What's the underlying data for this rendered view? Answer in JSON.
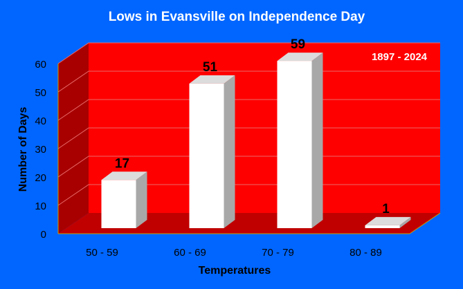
{
  "chart_data": {
    "type": "bar",
    "title": "Lows in Evansville on Independence Day",
    "subtitle": "1897 - 2024",
    "xlabel": "Temperatures",
    "ylabel": "Number of Days",
    "categories": [
      "50 - 59",
      "60 - 69",
      "70 - 79",
      "80 - 89"
    ],
    "values": [
      17,
      51,
      59,
      1
    ],
    "ylim": [
      0,
      60
    ],
    "yticks": [
      0,
      10,
      20,
      30,
      40,
      50,
      60
    ],
    "grid": true,
    "legend": "none",
    "style": "3d",
    "colors": {
      "background": "#0066ff",
      "wall": "#ff0000",
      "wall_side": "#a80000",
      "floor": "#c00000",
      "bar_front": "#ffffff",
      "bar_side": "#a8a8a8",
      "bar_top": "#dcdcdc",
      "title_text": "#ffffff",
      "axis_text": "#000000"
    }
  }
}
